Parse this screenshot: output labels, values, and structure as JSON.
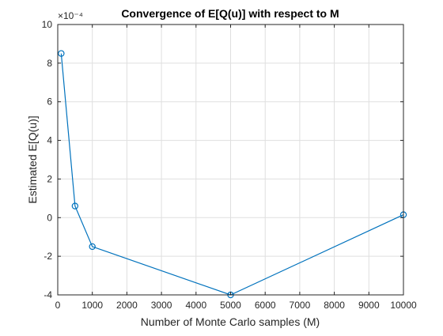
{
  "chart_data": {
    "type": "line",
    "title": "Convergence of E[Q(u)] with respect to M",
    "xlabel": "Number of Monte Carlo samples (M)",
    "ylabel": "Estimated E[Q(u)]",
    "y_exponent_label": "×10⁻⁴",
    "xlim": [
      0,
      10000
    ],
    "ylim": [
      -4,
      10
    ],
    "y_scale_factor": "1e-4",
    "x_ticks": [
      0,
      1000,
      2000,
      3000,
      4000,
      5000,
      6000,
      7000,
      8000,
      9000,
      10000
    ],
    "y_ticks": [
      -4,
      -2,
      0,
      2,
      4,
      6,
      8,
      10
    ],
    "grid": true,
    "series": [
      {
        "x": [
          100,
          500,
          1000,
          5000,
          10000
        ],
        "y": [
          8.5,
          0.6,
          -1.5,
          -4.0,
          0.15
        ],
        "marker": "circle",
        "color": "#0072bd"
      }
    ]
  }
}
